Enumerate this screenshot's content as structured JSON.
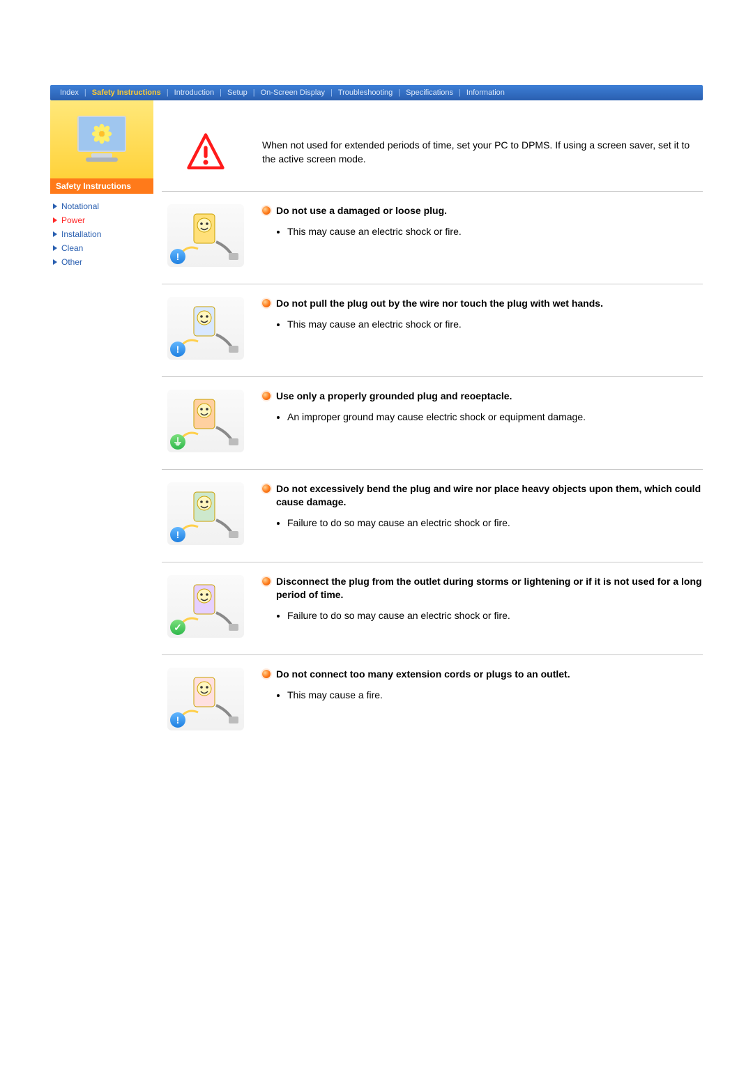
{
  "colors": {
    "topbar_grad_from": "#3d7fd6",
    "topbar_grad_to": "#2a5fb0",
    "topbar_text": "#dce8fa",
    "topbar_active": "#ffcc33",
    "sidebar_hero_from": "#ffe87a",
    "sidebar_hero_to": "#ffd23a",
    "sidebar_header_bg": "#ff7a1a",
    "sidebar_link": "#2a5fb0",
    "sidebar_link_active": "#ff2a2a",
    "divider": "#c8c8c8",
    "bullet_orange": "#ff7a1a",
    "warn_triangle": "#ff1a1a",
    "badge_blue": "#1e7fe0",
    "badge_green": "#2fb84c"
  },
  "nav": {
    "items": [
      {
        "label": "Index"
      },
      {
        "label": "Safety Instructions",
        "active": true
      },
      {
        "label": "Introduction"
      },
      {
        "label": "Setup"
      },
      {
        "label": "On-Screen Display"
      },
      {
        "label": "Troubleshooting"
      },
      {
        "label": "Specifications"
      },
      {
        "label": "Information"
      }
    ],
    "separator": "|"
  },
  "sidebar": {
    "header": "Safety Instructions",
    "items": [
      {
        "label": "Notational"
      },
      {
        "label": "Power",
        "current": true
      },
      {
        "label": "Installation"
      },
      {
        "label": "Clean"
      },
      {
        "label": "Other"
      }
    ]
  },
  "intro": {
    "text": "When not used for extended periods of time, set your PC to DPMS. If using a screen saver, set it to the active screen mode."
  },
  "sections": [
    {
      "title": "Do not use a damaged or loose plug.",
      "points": [
        "This may cause an electric shock or fire."
      ],
      "badge": "blue",
      "badge_glyph": "!"
    },
    {
      "title": "Do not pull the plug out by the wire nor touch the plug with wet hands.",
      "points": [
        "This may cause an electric shock or fire."
      ],
      "badge": "blue",
      "badge_glyph": "!"
    },
    {
      "title": "Use only a properly grounded plug and reoeptacle.",
      "points": [
        "An improper ground may cause electric shock or equipment damage."
      ],
      "badge": "green",
      "badge_glyph": "⏚"
    },
    {
      "title": "Do not excessively bend the plug and wire nor place heavy objects upon them, which could cause damage.",
      "points": [
        "Failure to do so may cause an electric shock or fire."
      ],
      "badge": "blue",
      "badge_glyph": "!"
    },
    {
      "title": "Disconnect the plug from the outlet during storms or lightening or if it is not used for a long period of time.",
      "points": [
        "Failure to do so may cause an electric shock or fire."
      ],
      "badge": "green",
      "badge_glyph": "✓"
    },
    {
      "title": "Do not connect too many extension cords or plugs to an outlet.",
      "points": [
        "This may cause a fire."
      ],
      "badge": "blue",
      "badge_glyph": "!"
    }
  ]
}
